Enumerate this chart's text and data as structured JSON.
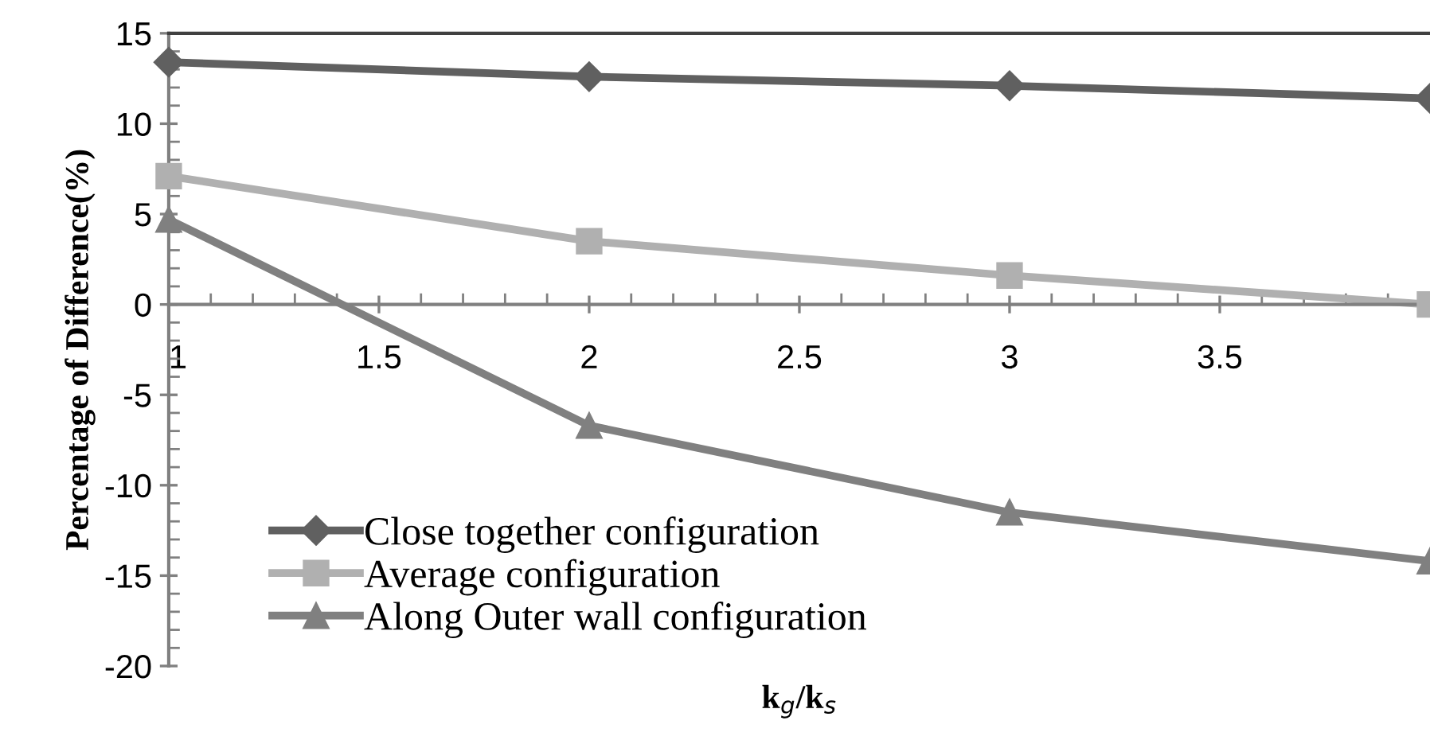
{
  "chart_data": {
    "type": "line",
    "xlabel": "k$_{g}$/k$_{s}$",
    "ylabel": "Percentage of Difference(%)",
    "x": [
      1,
      2,
      3,
      4
    ],
    "xlim": [
      1,
      4
    ],
    "xticks": [
      1,
      1.5,
      2,
      2.5,
      3,
      3.5
    ],
    "ylim": [
      -20,
      15
    ],
    "yticks": [
      -20,
      -15,
      -10,
      -5,
      0,
      5,
      10,
      15
    ],
    "legend": "bottom left",
    "grid": false,
    "series": [
      {
        "name": "Close together configuration",
        "color": "#606060",
        "marker": "diamond",
        "values": [
          13.4,
          12.6,
          12.1,
          11.4
        ]
      },
      {
        "name": "Average configuration",
        "color": "#b0b0b0",
        "marker": "square",
        "values": [
          7.1,
          3.5,
          1.6,
          0
        ]
      },
      {
        "name": "Along Outer wall configuration",
        "color": "#808080",
        "marker": "triangle",
        "values": [
          4.7,
          -6.7,
          -11.5,
          -14.2
        ]
      }
    ]
  }
}
